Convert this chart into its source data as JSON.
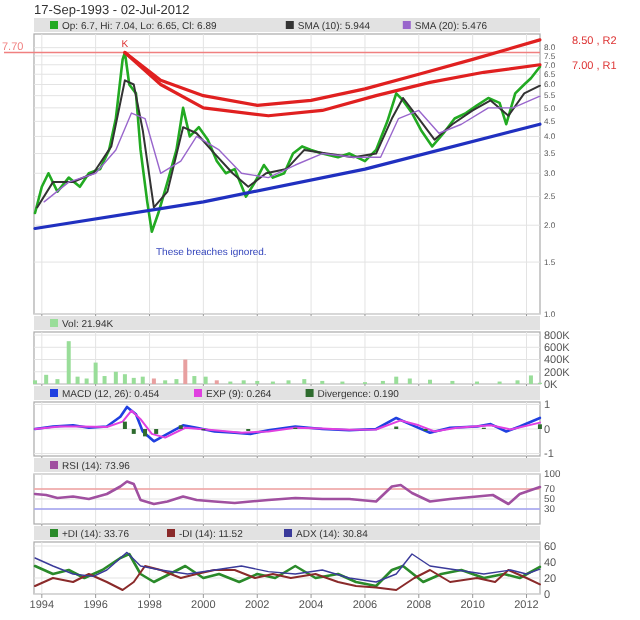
{
  "chart_data": [
    {
      "type": "line",
      "title": "17-Sep-1993 - 02-Jul-2012",
      "log": "y",
      "grid": true,
      "legend": "top left",
      "tick_labels": "y",
      "xlim": [
        "1993-09-17",
        "2012-07-02"
      ],
      "xticks": [
        "1994",
        "1996",
        "1998",
        "2000",
        "2002",
        "2004",
        "2006",
        "2008",
        "2010",
        "2012"
      ],
      "ylim": [
        1,
        8.9
      ],
      "yticks": [
        {
          "value": 1,
          "label": "1.0"
        },
        1.5,
        {
          "value": 2,
          "label": "2.0"
        },
        2.5,
        {
          "value": 3,
          "label": "3.0"
        },
        3.5,
        {
          "value": 4,
          "label": "4.0"
        },
        4.5,
        {
          "value": 5,
          "label": "5.0"
        },
        5.5,
        {
          "value": 6,
          "label": "6.0"
        },
        6.5,
        {
          "value": 7,
          "label": "7.0"
        },
        7.5,
        {
          "value": 8,
          "label": "8.0"
        }
      ],
      "ref_lines": [
        {
          "axis": "y",
          "value": 7.7,
          "label": "7.70",
          "color": "#f08080"
        }
      ],
      "annotations": [
        {
          "text": "K",
          "x": "1997-02",
          "y": 7.7
        },
        {
          "text": "8.50 , R2",
          "x": "2012-07-02",
          "y": 8.5
        },
        {
          "text": "7.00 , R1",
          "x": "2012-07-02",
          "y": 7.0
        },
        "These breaches ignored."
      ],
      "series": [
        {
          "name": "Op: 6.7, Hi: 7.04, Lo: 6.65, Cl: 6.89",
          "color": "#22aa22",
          "x": [
            "1993-10",
            "1994-01",
            "1994-04",
            "1994-08",
            "1995-01",
            "1995-06",
            "1995-10",
            "1996-03",
            "1996-07",
            "1996-10",
            "1997-01",
            "1997-02",
            "1997-04",
            "1997-07",
            "1997-09",
            "1997-12",
            "1998-02",
            "1998-05",
            "1998-09",
            "1999-01",
            "1999-04",
            "1999-07",
            "1999-11",
            "2000-03",
            "2000-07",
            "2000-11",
            "2001-03",
            "2001-08",
            "2001-12",
            "2002-04",
            "2002-08",
            "2003-01",
            "2003-05",
            "2003-09",
            "2004-01",
            "2004-06",
            "2005-01",
            "2005-06",
            "2006-01",
            "2006-06",
            "2006-11",
            "2007-03",
            "2007-06",
            "2007-10",
            "2008-02",
            "2008-07",
            "2008-12",
            "2009-05",
            "2009-10",
            "2010-03",
            "2010-08",
            "2011-01",
            "2011-04",
            "2011-08",
            "2011-12",
            "2012-03",
            "2012-07"
          ],
          "values": [
            2.2,
            2.7,
            3.0,
            2.6,
            2.9,
            2.7,
            3.0,
            3.1,
            3.6,
            4.6,
            7.3,
            7.7,
            6.0,
            5.6,
            3.6,
            2.4,
            1.9,
            2.2,
            2.8,
            3.6,
            5.0,
            4.0,
            4.3,
            3.9,
            3.3,
            3.0,
            3.1,
            2.5,
            2.8,
            3.2,
            2.9,
            3.0,
            3.5,
            3.7,
            3.6,
            3.5,
            3.4,
            3.5,
            3.3,
            3.6,
            4.5,
            5.6,
            5.3,
            4.8,
            4.2,
            3.7,
            4.1,
            4.6,
            4.8,
            5.1,
            5.4,
            5.2,
            4.4,
            5.6,
            6.0,
            6.3,
            6.89
          ]
        },
        {
          "name": "SMA (10): 5.944",
          "color": "#333333",
          "x": [
            "1993-11",
            "1994-06",
            "1995-03",
            "1995-12",
            "1996-08",
            "1997-02",
            "1997-06",
            "1997-10",
            "1998-03",
            "1998-09",
            "1999-04",
            "1999-10",
            "2000-06",
            "2001-02",
            "2001-09",
            "2002-05",
            "2003-02",
            "2003-10",
            "2004-08",
            "2005-08",
            "2006-06",
            "2007-01",
            "2007-06",
            "2008-01",
            "2008-08",
            "2009-04",
            "2010-01",
            "2010-09",
            "2011-05",
            "2011-12",
            "2012-07"
          ],
          "values": [
            2.3,
            2.8,
            2.8,
            3.0,
            3.7,
            6.2,
            6.0,
            4.2,
            2.3,
            2.6,
            4.3,
            4.1,
            3.5,
            3.0,
            2.7,
            3.0,
            3.1,
            3.6,
            3.5,
            3.4,
            3.5,
            4.6,
            5.4,
            4.6,
            3.9,
            4.4,
            4.9,
            5.3,
            4.7,
            5.6,
            5.944
          ]
        },
        {
          "name": "SMA (20): 5.476",
          "color": "#9966cc",
          "x": [
            "1994-02",
            "1995-01",
            "1996-01",
            "1996-10",
            "1997-05",
            "1997-11",
            "1998-06",
            "1999-03",
            "1999-10",
            "2000-08",
            "2001-06",
            "2002-06",
            "2003-06",
            "2004-06",
            "2005-08",
            "2006-08",
            "2007-04",
            "2008-01",
            "2008-10",
            "2009-08",
            "2010-08",
            "2011-07",
            "2012-07"
          ],
          "values": [
            2.4,
            2.8,
            3.0,
            3.6,
            4.8,
            4.6,
            3.0,
            3.3,
            4.0,
            3.6,
            3.0,
            2.9,
            3.2,
            3.5,
            3.4,
            3.4,
            4.6,
            4.9,
            4.1,
            4.4,
            5.0,
            5.0,
            5.476
          ]
        },
        {
          "color": "#e02020",
          "x": [
            "1997-02",
            "1998-06",
            "2000-01",
            "2002-01",
            "2004-01",
            "2006-01",
            "2008-01",
            "2010-01",
            "2012-07"
          ],
          "values": [
            7.7,
            6.2,
            5.5,
            5.1,
            5.3,
            5.8,
            6.5,
            7.3,
            8.5
          ]
        },
        {
          "color": "#e02020",
          "x": [
            "1997-02",
            "1998-06",
            "2000-01",
            "2002-06",
            "2004-06",
            "2006-06",
            "2008-06",
            "2010-06",
            "2012-07"
          ],
          "values": [
            7.7,
            6.0,
            5.0,
            4.7,
            4.9,
            5.5,
            6.1,
            6.6,
            7.0
          ]
        },
        {
          "color": "#2030c0",
          "x": [
            "1993-10",
            "2000-01",
            "2006-01",
            "2012-07"
          ],
          "values": [
            1.95,
            2.4,
            3.1,
            4.4
          ]
        }
      ]
    },
    {
      "type": "bar",
      "grid": true,
      "legend": "top left",
      "tick_labels": "y",
      "xlim": [
        "1993-09-17",
        "2012-07-02"
      ],
      "xticks": [
        "1994",
        "1996",
        "1998",
        "2000",
        "2002",
        "2004",
        "2006",
        "2008",
        "2010",
        "2012"
      ],
      "ylim": [
        0,
        850
      ],
      "yticks": [
        {
          "value": 0,
          "label": "0K"
        },
        {
          "value": 200,
          "label": "200K"
        },
        {
          "value": 400,
          "label": "400K"
        },
        {
          "value": 600,
          "label": "600K"
        },
        {
          "value": 800,
          "label": "800K"
        }
      ],
      "series": [
        {
          "name": "Vol: 21.94K",
          "color": "#99dd99",
          "x": [
            "1993-10",
            "1994-03",
            "1994-08",
            "1995-01",
            "1995-05",
            "1995-09",
            "1996-01",
            "1996-05",
            "1996-10",
            "1997-02",
            "1997-06",
            "1997-10",
            "1998-03",
            "1998-08",
            "1999-01",
            "1999-05",
            "1999-09",
            "2000-02",
            "2000-07",
            "2001-01",
            "2001-07",
            "2002-01",
            "2002-08",
            "2003-03",
            "2003-10",
            "2004-06",
            "2005-03",
            "2006-01",
            "2006-09",
            "2007-03",
            "2007-09",
            "2008-06",
            "2009-04",
            "2010-03",
            "2011-01",
            "2011-09",
            "2012-03",
            "2012-07"
          ],
          "values": [
            60,
            150,
            80,
            700,
            120,
            90,
            350,
            130,
            200,
            160,
            100,
            120,
            90,
            60,
            80,
            400,
            130,
            120,
            60,
            40,
            60,
            50,
            40,
            60,
            80,
            50,
            40,
            30,
            50,
            120,
            90,
            70,
            50,
            40,
            40,
            60,
            140,
            20
          ],
          "colors": [
            "#99dd99",
            "#99dd99",
            "#99dd99",
            "#99dd99",
            "#99dd99",
            "#99dd99",
            "#99dd99",
            "#99dd99",
            "#99dd99",
            "#99dd99",
            "#99dd99",
            "#99dd99",
            "#e8a0a0",
            "#99dd99",
            "#99dd99",
            "#e8a0a0",
            "#99dd99",
            "#99dd99",
            "#e8a0a0",
            "#99dd99",
            "#99dd99",
            "#99dd99",
            "#99dd99",
            "#99dd99",
            "#99dd99",
            "#99dd99",
            "#99dd99",
            "#99dd99",
            "#99dd99",
            "#99dd99",
            "#99dd99",
            "#99dd99",
            "#99dd99",
            "#99dd99",
            "#99dd99",
            "#99dd99",
            "#99dd99",
            "#99dd99"
          ]
        }
      ]
    },
    {
      "type": "line",
      "grid": true,
      "legend": "top left",
      "tick_labels": "y",
      "xlim": [
        "1993-09-17",
        "2012-07-02"
      ],
      "xticks": [
        "1994",
        "1996",
        "1998",
        "2000",
        "2002",
        "2004",
        "2006",
        "2008",
        "2010",
        "2012"
      ],
      "ylim": [
        -1.1,
        1.1
      ],
      "yticks": [
        -1,
        0,
        1
      ],
      "series": [
        {
          "name": "MACD (12, 26): 0.454",
          "color": "#2040e0",
          "x": [
            "1993-10",
            "1994-06",
            "1995-03",
            "1995-10",
            "1996-06",
            "1996-12",
            "1997-03",
            "1997-07",
            "1997-10",
            "1998-03",
            "1998-09",
            "1999-04",
            "1999-10",
            "2000-06",
            "2001-03",
            "2001-10",
            "2002-06",
            "2003-06",
            "2004-06",
            "2005-06",
            "2006-06",
            "2007-03",
            "2007-09",
            "2008-06",
            "2009-03",
            "2010-03",
            "2010-09",
            "2011-04",
            "2011-10",
            "2012-07"
          ],
          "values": [
            0.0,
            0.1,
            0.15,
            0.05,
            0.1,
            0.5,
            0.9,
            0.6,
            -0.1,
            -0.5,
            -0.2,
            0.15,
            0.05,
            -0.1,
            -0.15,
            -0.2,
            -0.05,
            0.1,
            0.0,
            -0.05,
            0.0,
            0.45,
            0.2,
            -0.15,
            0.05,
            0.1,
            0.2,
            -0.1,
            0.1,
            0.45
          ]
        },
        {
          "name": "EXP (9): 0.264",
          "color": "#e040e0",
          "x": [
            "1993-10",
            "1994-09",
            "1995-06",
            "1996-06",
            "1997-01",
            "1997-05",
            "1997-09",
            "1998-02",
            "1998-08",
            "1999-05",
            "2000-06",
            "2001-06",
            "2002-06",
            "2003-06",
            "2004-06",
            "2005-06",
            "2006-06",
            "2007-05",
            "2008-01",
            "2008-08",
            "2009-06",
            "2010-09",
            "2011-06",
            "2012-07"
          ],
          "values": [
            0.0,
            0.1,
            0.1,
            0.08,
            0.3,
            0.75,
            0.4,
            -0.2,
            -0.35,
            0.05,
            -0.05,
            -0.15,
            -0.1,
            0.05,
            0.02,
            -0.03,
            -0.02,
            0.35,
            0.15,
            -0.1,
            0.05,
            0.15,
            -0.02,
            0.26
          ]
        },
        {
          "name": "Divergence: 0.190",
          "type": "bar",
          "color": "#2e6b2e",
          "x": [
            "1997-02",
            "1997-06",
            "1997-11",
            "1998-04",
            "1999-03",
            "2000-01",
            "2001-09",
            "2003-06",
            "2007-03",
            "2008-04",
            "2010-06",
            "2012-07"
          ],
          "values": [
            0.3,
            -0.2,
            -0.3,
            -0.2,
            0.15,
            -0.05,
            -0.08,
            0.05,
            0.1,
            -0.08,
            0.05,
            0.19
          ]
        }
      ]
    },
    {
      "type": "line",
      "grid": true,
      "legend": "top left",
      "tick_labels": "y",
      "xlim": [
        "1993-09-17",
        "2012-07-02"
      ],
      "xticks": [
        "1994",
        "1996",
        "1998",
        "2000",
        "2002",
        "2004",
        "2006",
        "2008",
        "2010",
        "2012"
      ],
      "ylim": [
        0,
        100
      ],
      "yticks": [
        30,
        50,
        70,
        100
      ],
      "ref_lines": [
        {
          "axis": "y",
          "value": 70,
          "color": "#f0a0a0"
        },
        {
          "axis": "y",
          "value": 30,
          "color": "#a0a0f0"
        }
      ],
      "series": [
        {
          "name": "RSI (14): 73.96",
          "color": "#a050a0",
          "x": [
            "1993-10",
            "1994-03",
            "1994-08",
            "1995-03",
            "1995-10",
            "1996-06",
            "1996-12",
            "1997-03",
            "1997-06",
            "1997-09",
            "1998-03",
            "1998-09",
            "1999-04",
            "1999-10",
            "2000-06",
            "2001-03",
            "2001-10",
            "2002-06",
            "2003-06",
            "2004-06",
            "2005-06",
            "2006-06",
            "2007-01",
            "2007-05",
            "2007-10",
            "2008-06",
            "2009-03",
            "2010-03",
            "2010-10",
            "2011-05",
            "2011-10",
            "2012-07"
          ],
          "values": [
            60,
            58,
            52,
            55,
            50,
            60,
            75,
            85,
            80,
            48,
            40,
            45,
            55,
            48,
            45,
            42,
            45,
            48,
            52,
            50,
            50,
            45,
            75,
            78,
            62,
            45,
            50,
            55,
            58,
            40,
            60,
            74
          ]
        }
      ]
    },
    {
      "type": "line",
      "grid": true,
      "legend": "top left",
      "xlim": [
        "1993-09-17",
        "2012-07-02"
      ],
      "xticks": [
        "1994",
        "1996",
        "1998",
        "2000",
        "2002",
        "2004",
        "2006",
        "2008",
        "2010",
        "2012"
      ],
      "ylim": [
        0,
        65
      ],
      "yticks": [
        0,
        20,
        40,
        60
      ],
      "series": [
        {
          "name": "+DI (14): 33.76",
          "color": "#2a8a2a",
          "x": [
            "1993-10",
            "1994-06",
            "1995-01",
            "1995-08",
            "1996-04",
            "1996-12",
            "1997-04",
            "1997-09",
            "1998-03",
            "1998-10",
            "1999-05",
            "2000-01",
            "2000-08",
            "2001-05",
            "2002-01",
            "2002-09",
            "2003-06",
            "2004-03",
            "2005-01",
            "2005-09",
            "2006-06",
            "2007-01",
            "2007-06",
            "2008-03",
            "2008-11",
            "2009-08",
            "2010-06",
            "2011-03",
            "2011-10",
            "2012-07"
          ],
          "values": [
            35,
            25,
            30,
            20,
            30,
            45,
            50,
            25,
            15,
            25,
            35,
            20,
            25,
            15,
            25,
            20,
            35,
            20,
            25,
            15,
            10,
            30,
            35,
            15,
            25,
            30,
            20,
            25,
            20,
            34
          ]
        },
        {
          "name": "-DI (14): 11.52",
          "color": "#8a2a2a",
          "x": [
            "1993-10",
            "1994-06",
            "1995-03",
            "1995-10",
            "1996-06",
            "1997-01",
            "1997-06",
            "1997-11",
            "1998-06",
            "1999-03",
            "1999-10",
            "2000-06",
            "2001-03",
            "2001-12",
            "2002-08",
            "2003-04",
            "2004-03",
            "2005-01",
            "2005-09",
            "2006-06",
            "2007-03",
            "2007-11",
            "2008-06",
            "2009-03",
            "2010-03",
            "2010-11",
            "2011-05",
            "2012-01",
            "2012-07"
          ],
          "values": [
            10,
            20,
            15,
            25,
            15,
            5,
            15,
            35,
            30,
            20,
            25,
            30,
            30,
            20,
            25,
            20,
            25,
            15,
            10,
            8,
            5,
            20,
            30,
            15,
            20,
            15,
            30,
            20,
            12
          ]
        },
        {
          "name": "ADX (14): 30.84",
          "color": "#3a3a9a",
          "x": [
            "1993-10",
            "1994-06",
            "1995-03",
            "1995-12",
            "1996-06",
            "1997-03",
            "1997-09",
            "1998-06",
            "1999-06",
            "2000-06",
            "2001-06",
            "2002-06",
            "2003-06",
            "2004-06",
            "2005-06",
            "2006-06",
            "2007-03",
            "2007-10",
            "2008-06",
            "2009-06",
            "2010-06",
            "2011-06",
            "2012-01",
            "2012-07"
          ],
          "values": [
            45,
            35,
            25,
            22,
            30,
            52,
            35,
            30,
            25,
            30,
            35,
            28,
            25,
            30,
            20,
            15,
            25,
            50,
            35,
            30,
            25,
            30,
            25,
            31
          ]
        }
      ]
    }
  ]
}
